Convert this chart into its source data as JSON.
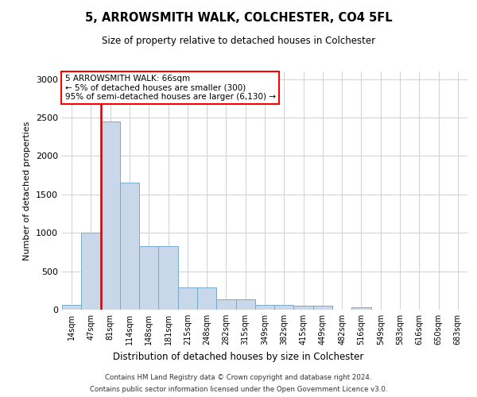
{
  "title1": "5, ARROWSMITH WALK, COLCHESTER, CO4 5FL",
  "title2": "Size of property relative to detached houses in Colchester",
  "xlabel": "Distribution of detached houses by size in Colchester",
  "ylabel": "Number of detached properties",
  "footer1": "Contains HM Land Registry data © Crown copyright and database right 2024.",
  "footer2": "Contains public sector information licensed under the Open Government Licence v3.0.",
  "annotation_title": "5 ARROWSMITH WALK: 66sqm",
  "annotation_line1": "← 5% of detached houses are smaller (300)",
  "annotation_line2": "95% of semi-detached houses are larger (6,130) →",
  "bar_color": "#c8d8ea",
  "bar_edge_color": "#7aaac8",
  "vline_color": "#cc0000",
  "categories": [
    "14sqm",
    "47sqm",
    "81sqm",
    "114sqm",
    "148sqm",
    "181sqm",
    "215sqm",
    "248sqm",
    "282sqm",
    "315sqm",
    "349sqm",
    "382sqm",
    "415sqm",
    "449sqm",
    "482sqm",
    "516sqm",
    "549sqm",
    "583sqm",
    "616sqm",
    "650sqm",
    "683sqm"
  ],
  "values": [
    60,
    1000,
    2450,
    1650,
    830,
    830,
    290,
    290,
    130,
    130,
    60,
    60,
    50,
    50,
    0,
    30,
    0,
    0,
    0,
    0,
    0
  ],
  "ylim": [
    0,
    3100
  ],
  "yticks": [
    0,
    500,
    1000,
    1500,
    2000,
    2500,
    3000
  ],
  "background_color": "#ffffff",
  "grid_color": "#d0d0d8"
}
